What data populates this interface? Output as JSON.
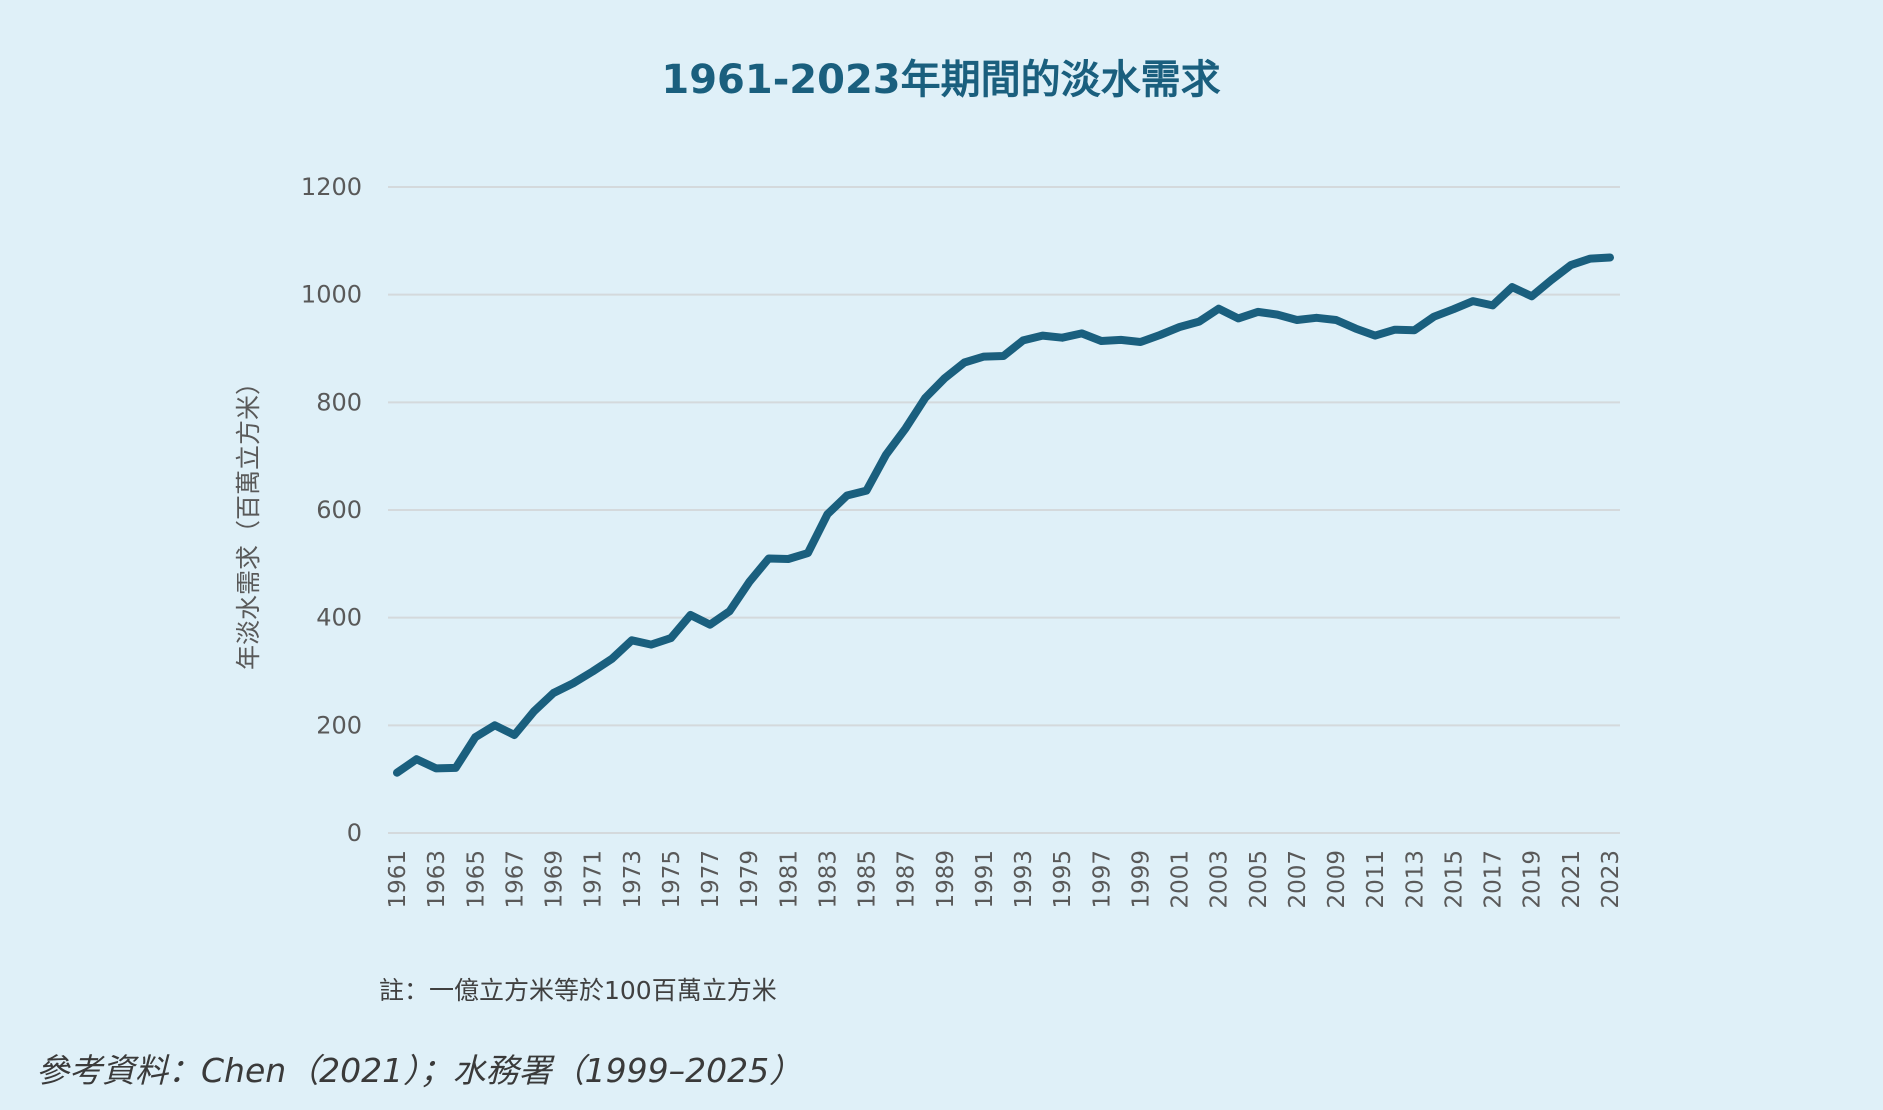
{
  "chart_data": {
    "type": "line",
    "title": "1961-2023年期間的淡水需求",
    "ylabel": "年淡水需求（百萬立方米）",
    "xlabel": "",
    "ylim": [
      0,
      1200
    ],
    "yticks": [
      0,
      200,
      400,
      600,
      800,
      1000,
      1200
    ],
    "grid": true,
    "x": [
      1961,
      1962,
      1963,
      1964,
      1965,
      1966,
      1967,
      1968,
      1969,
      1970,
      1971,
      1972,
      1973,
      1974,
      1975,
      1976,
      1977,
      1978,
      1979,
      1980,
      1981,
      1982,
      1983,
      1984,
      1985,
      1986,
      1987,
      1988,
      1989,
      1990,
      1991,
      1992,
      1993,
      1994,
      1995,
      1996,
      1997,
      1998,
      1999,
      2000,
      2001,
      2002,
      2003,
      2004,
      2005,
      2006,
      2007,
      2008,
      2009,
      2010,
      2011,
      2012,
      2013,
      2014,
      2015,
      2016,
      2017,
      2018,
      2019,
      2020,
      2021,
      2022,
      2023
    ],
    "xtick_labels": [
      "1961",
      "1963",
      "1965",
      "1967",
      "1969",
      "1971",
      "1973",
      "1975",
      "1977",
      "1979",
      "1981",
      "1983",
      "1985",
      "1987",
      "1989",
      "1991",
      "1993",
      "1995",
      "1997",
      "1999",
      "2001",
      "2003",
      "2005",
      "2007",
      "2009",
      "2011",
      "2013",
      "2015",
      "2017",
      "2019",
      "2021",
      "2023"
    ],
    "series": [
      {
        "values": [
          112,
          137,
          120,
          121,
          178,
          200,
          182,
          226,
          260,
          278,
          300,
          324,
          358,
          350,
          362,
          405,
          387,
          412,
          466,
          510,
          509,
          520,
          592,
          627,
          636,
          703,
          752,
          808,
          845,
          874,
          885,
          886,
          915,
          924,
          920,
          928,
          914,
          916,
          912,
          925,
          940,
          950,
          974,
          956,
          968,
          963,
          953,
          957,
          953,
          937,
          924,
          935,
          934,
          959,
          973,
          988,
          980,
          1014,
          997,
          1027,
          1055,
          1067,
          1069
        ],
        "color": "#1a5f7e"
      }
    ],
    "note": "註：一億立方米等於100百萬立方米",
    "source": "參考資料：Chen（2021）；水務署（1999–2025）"
  }
}
